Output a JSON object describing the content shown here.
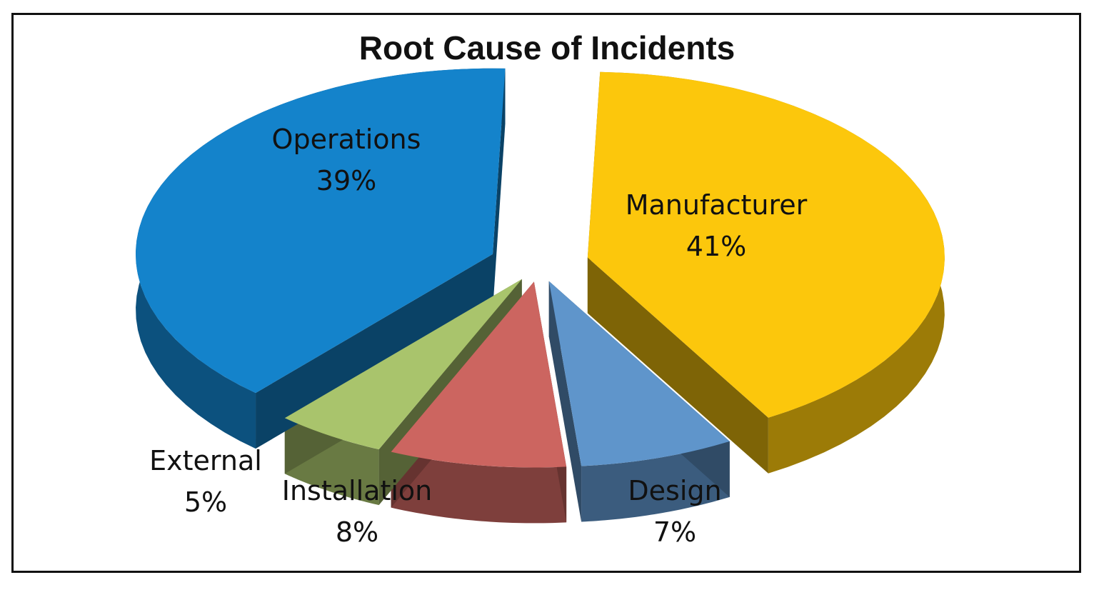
{
  "chart_data": {
    "type": "pie",
    "title": "Root Cause of Incidents",
    "slices": [
      {
        "label": "Manufacturer",
        "value": 41,
        "value_label": "41%",
        "color": "#FCC70C"
      },
      {
        "label": "Design",
        "value": 7,
        "value_label": "7%",
        "color": "#5F95CB"
      },
      {
        "label": "Installation",
        "value": 8,
        "value_label": "8%",
        "color": "#CC6560"
      },
      {
        "label": "External",
        "value": 5,
        "value_label": "5%",
        "color": "#A9C46C"
      },
      {
        "label": "Operations",
        "value": 39,
        "value_label": "39%",
        "color": "#1483CB"
      }
    ],
    "exploded": true,
    "perspective": "3d"
  }
}
